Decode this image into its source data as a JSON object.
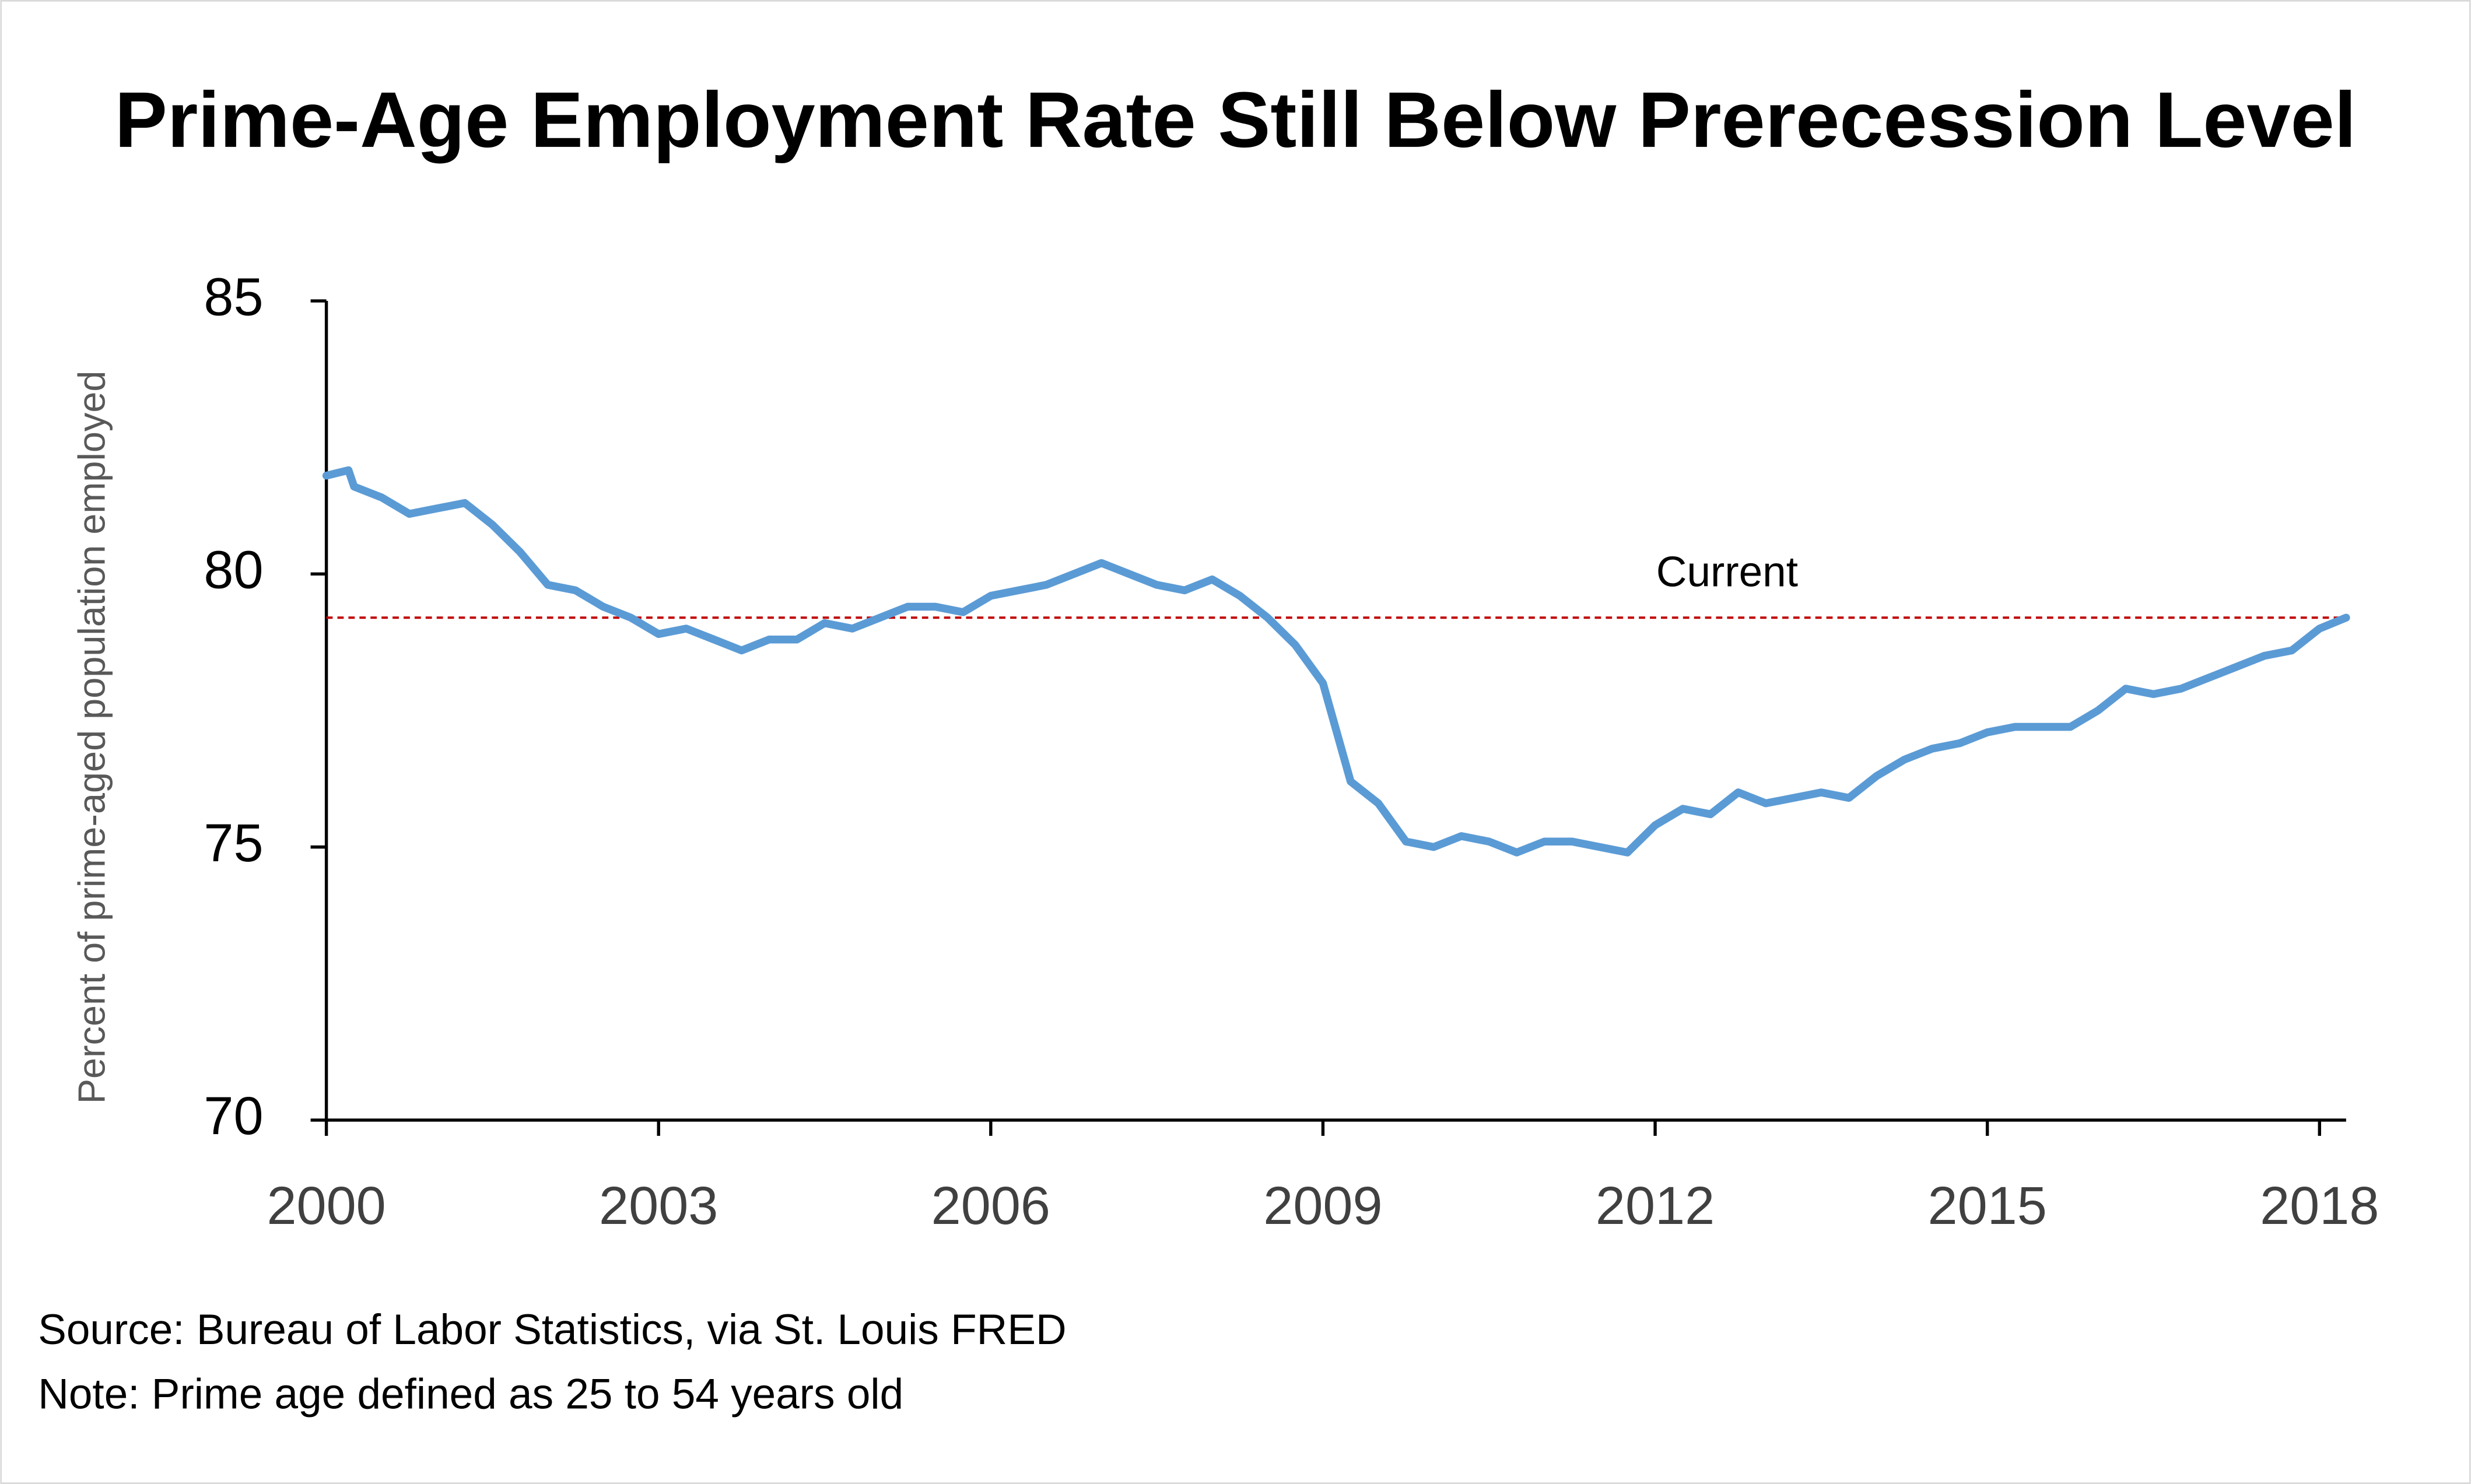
{
  "chart_data": {
    "type": "line",
    "title": "Prime-Age Employment Rate Still Below Prerecession Level",
    "ylabel": "Percent of prime-aged population employed",
    "source": "Source: Bureau of Labor Statistics, via St. Louis FRED",
    "note": "Note: Prime age defined as 25 to 54 years old",
    "x": [
      2000.0,
      2000.2,
      2000.25,
      2000.5,
      2000.75,
      2001.0,
      2001.25,
      2001.5,
      2001.75,
      2002.0,
      2002.25,
      2002.5,
      2002.75,
      2003.0,
      2003.25,
      2003.5,
      2003.75,
      2004.0,
      2004.25,
      2004.5,
      2004.75,
      2005.0,
      2005.25,
      2005.5,
      2005.75,
      2006.0,
      2006.25,
      2006.5,
      2006.75,
      2007.0,
      2007.25,
      2007.5,
      2007.75,
      2008.0,
      2008.25,
      2008.5,
      2008.75,
      2009.0,
      2009.25,
      2009.5,
      2009.75,
      2010.0,
      2010.25,
      2010.5,
      2010.75,
      2011.0,
      2011.25,
      2011.5,
      2011.75,
      2012.0,
      2012.25,
      2012.5,
      2012.75,
      2013.0,
      2013.25,
      2013.5,
      2013.75,
      2014.0,
      2014.25,
      2014.5,
      2014.75,
      2015.0,
      2015.25,
      2015.5,
      2015.75,
      2016.0,
      2016.25,
      2016.5,
      2016.75,
      2017.0,
      2017.25,
      2017.5,
      2017.75,
      2018.0,
      2018.24
    ],
    "series": [
      {
        "name": "Prime-age employment rate",
        "color": "#5b9bd5",
        "values": [
          81.8,
          81.9,
          81.6,
          81.4,
          81.1,
          81.2,
          81.3,
          80.9,
          80.4,
          79.8,
          79.7,
          79.4,
          79.2,
          78.9,
          79.0,
          78.8,
          78.6,
          78.8,
          78.8,
          79.1,
          79.0,
          79.2,
          79.4,
          79.4,
          79.3,
          79.6,
          79.7,
          79.8,
          80.0,
          80.2,
          80.0,
          79.8,
          79.7,
          79.9,
          79.6,
          79.2,
          78.7,
          78.0,
          76.2,
          75.8,
          75.1,
          75.0,
          75.2,
          75.1,
          74.9,
          75.1,
          75.1,
          75.0,
          74.9,
          75.4,
          75.7,
          75.6,
          76.0,
          75.8,
          75.9,
          76.0,
          75.9,
          76.3,
          76.6,
          76.8,
          76.9,
          77.1,
          77.2,
          77.2,
          77.2,
          77.5,
          77.9,
          77.8,
          77.9,
          78.1,
          78.3,
          78.5,
          78.6,
          79.0,
          79.2
        ]
      }
    ],
    "reference_line": {
      "value": 79.2,
      "label": "Current",
      "color": "#c00000"
    },
    "xlim": [
      2000,
      2018.24
    ],
    "xticks": [
      2000,
      2003,
      2006,
      2009,
      2012,
      2015,
      2018
    ],
    "ylim": [
      70,
      85
    ],
    "yticks": [
      70,
      75,
      80,
      85
    ],
    "grid": false
  }
}
